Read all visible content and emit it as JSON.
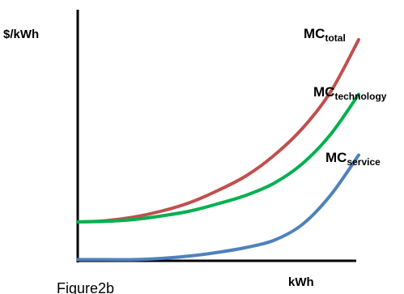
{
  "chart_data": {
    "type": "line",
    "ylabel": "$/kWh",
    "xlabel": "kWh",
    "caption": "Figure2b",
    "series": [
      {
        "name_main": "MC",
        "name_sub": "total",
        "color": "#C0504D",
        "points": [
          [
            0,
            0.0
          ],
          [
            0.1,
            0.01
          ],
          [
            0.2,
            0.04
          ],
          [
            0.3,
            0.09
          ],
          [
            0.4,
            0.16
          ],
          [
            0.5,
            0.26
          ],
          [
            0.6,
            0.38
          ],
          [
            0.7,
            0.55
          ],
          [
            0.8,
            0.77
          ],
          [
            0.9,
            1.07
          ],
          [
            1.0,
            1.5
          ]
        ]
      },
      {
        "name_main": "MC",
        "name_sub": "technology",
        "color": "#00B050",
        "points": [
          [
            0,
            0.0
          ],
          [
            0.1,
            0.005
          ],
          [
            0.2,
            0.02
          ],
          [
            0.3,
            0.05
          ],
          [
            0.4,
            0.09
          ],
          [
            0.5,
            0.15
          ],
          [
            0.6,
            0.22
          ],
          [
            0.7,
            0.32
          ],
          [
            0.8,
            0.48
          ],
          [
            0.9,
            0.72
          ],
          [
            1.0,
            1.05
          ]
        ]
      },
      {
        "name_main": "MC",
        "name_sub": "service",
        "color": "#4F81BD",
        "points": [
          [
            0,
            -0.31
          ],
          [
            0.1,
            -0.31
          ],
          [
            0.2,
            -0.31
          ],
          [
            0.3,
            -0.3
          ],
          [
            0.4,
            -0.28
          ],
          [
            0.5,
            -0.25
          ],
          [
            0.6,
            -0.21
          ],
          [
            0.7,
            -0.15
          ],
          [
            0.8,
            -0.02
          ],
          [
            0.9,
            0.22
          ],
          [
            1.0,
            0.55
          ]
        ]
      }
    ]
  }
}
